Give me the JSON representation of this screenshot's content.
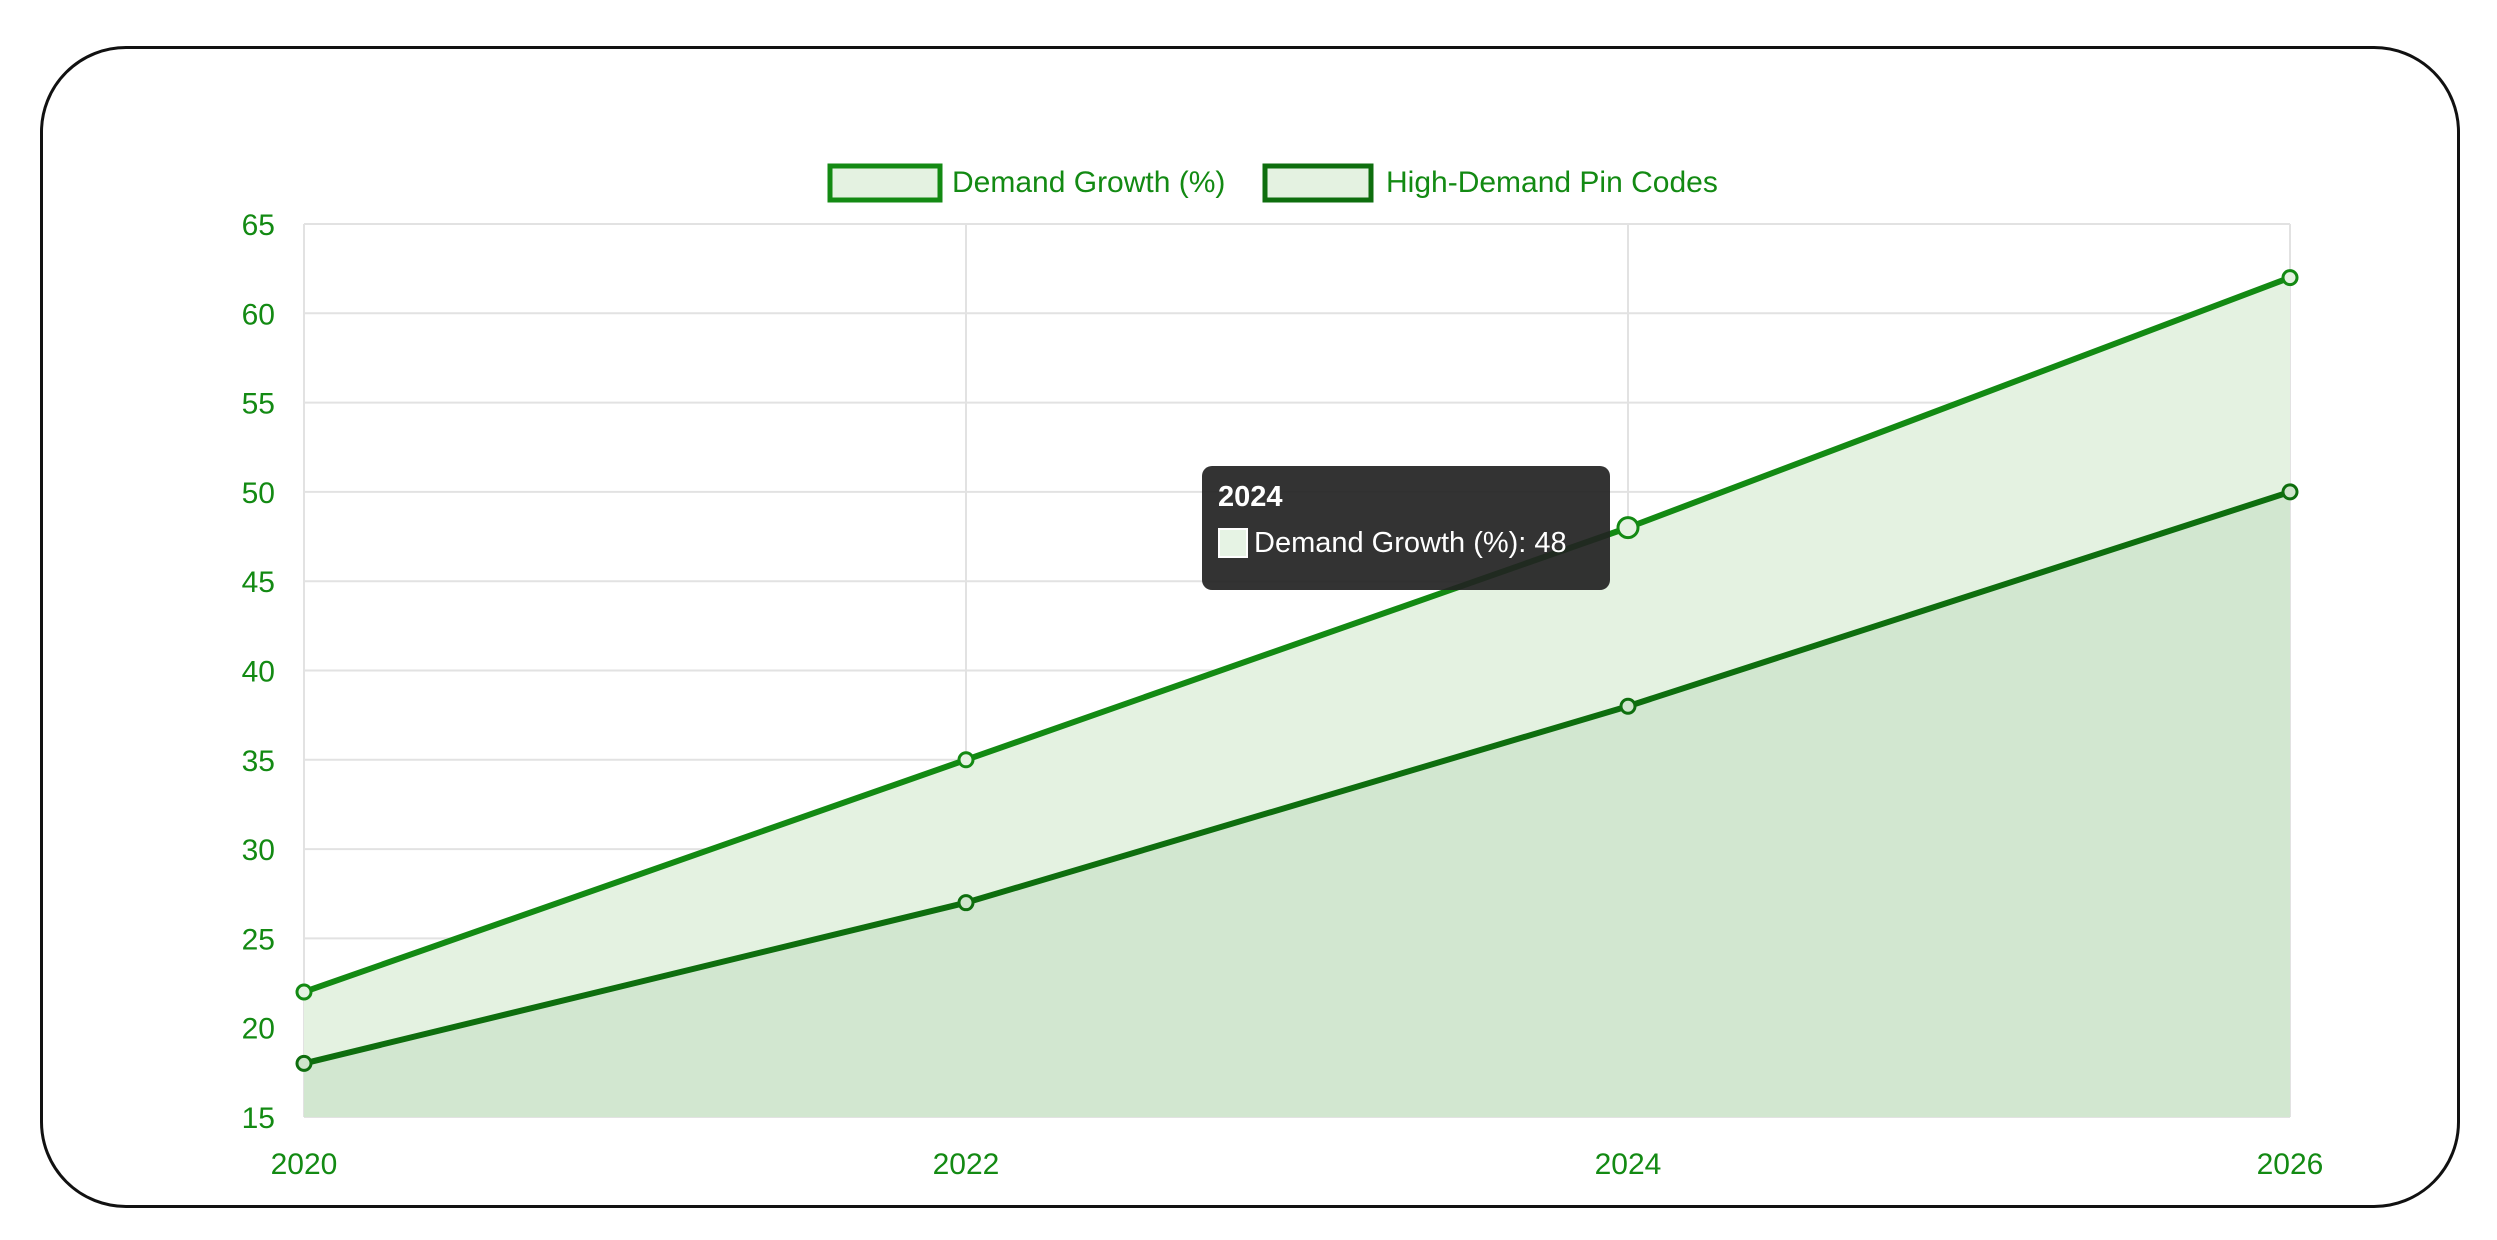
{
  "chart_data": {
    "type": "area",
    "x": [
      2020,
      2022,
      2024,
      2026
    ],
    "series": [
      {
        "name": "Demand Growth (%)",
        "values": [
          22,
          35,
          48,
          62
        ],
        "color": "#138a13",
        "fill": "#e4f2e1"
      },
      {
        "name": "High-Demand Pin Codes",
        "values": [
          18,
          27,
          38,
          50
        ],
        "color": "#0e6e0e",
        "fill": "#cfe5cc"
      }
    ],
    "ylim": [
      15,
      65
    ],
    "yticks": [
      15,
      20,
      25,
      30,
      35,
      40,
      45,
      50,
      55,
      60,
      65
    ],
    "xticks": [
      "2020",
      "2022",
      "2024",
      "2026"
    ],
    "grid": true,
    "legend": "top-center",
    "tick_color": "#138a13",
    "tooltip": {
      "title": "2024",
      "label": "Demand Growth (%): 48"
    }
  }
}
